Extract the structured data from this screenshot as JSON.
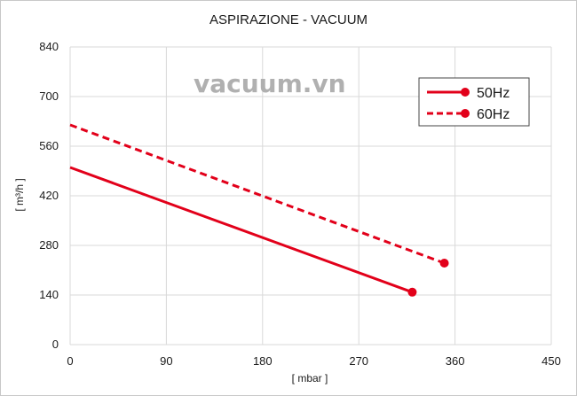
{
  "chart_data": {
    "type": "line",
    "title": "ASPIRAZIONE - VACUUM",
    "xlabel": "[ mbar ]",
    "ylabel": "[ m³/h ]",
    "xlim": [
      0,
      450
    ],
    "ylim": [
      0,
      840
    ],
    "xticks": [
      0,
      90,
      180,
      270,
      360,
      450
    ],
    "yticks": [
      0,
      140,
      280,
      420,
      560,
      700,
      840
    ],
    "grid": true,
    "legend_position": "top-right",
    "series": [
      {
        "name": "50Hz",
        "style": "solid",
        "color": "#e2001a",
        "x": [
          0,
          320
        ],
        "y": [
          500,
          148
        ]
      },
      {
        "name": "60Hz",
        "style": "dashed",
        "color": "#e2001a",
        "x": [
          0,
          350
        ],
        "y": [
          620,
          230
        ]
      }
    ]
  },
  "watermark": "vacuum.vn"
}
